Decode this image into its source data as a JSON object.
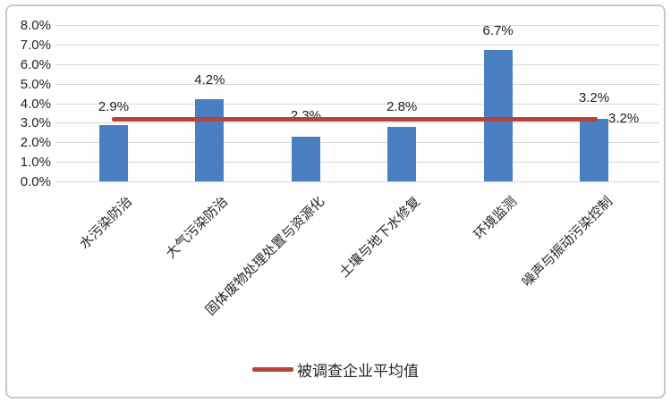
{
  "chart_data": {
    "type": "bar",
    "categories": [
      "水污染防治",
      "大气污染防治",
      "固体废物处理处置与资源化",
      "土壤与地下水修复",
      "环境监测",
      "噪声与振动污染控制"
    ],
    "values": [
      2.9,
      4.2,
      2.3,
      2.8,
      6.7,
      3.2
    ],
    "bar_labels": [
      "2.9%",
      "4.2%",
      "2.3%",
      "2.8%",
      "6.7%",
      "3.2%"
    ],
    "ylim": [
      0,
      8
    ],
    "ytick_step": 1,
    "ytick_labels": [
      "0.0%",
      "1.0%",
      "2.0%",
      "3.0%",
      "4.0%",
      "5.0%",
      "6.0%",
      "7.0%",
      "8.0%"
    ],
    "grid": true,
    "legend_position": "bottom-center",
    "bar_color": "#4a80c0",
    "average_line": {
      "value": 3.2,
      "end_label": "3.2%",
      "legend_label": "被调查企业平均值",
      "color": "#b5443f"
    }
  },
  "colors": {
    "background": "#fefefe",
    "border": "#c9c9c9",
    "gridline": "#d9d9d9",
    "text": "#262626"
  }
}
